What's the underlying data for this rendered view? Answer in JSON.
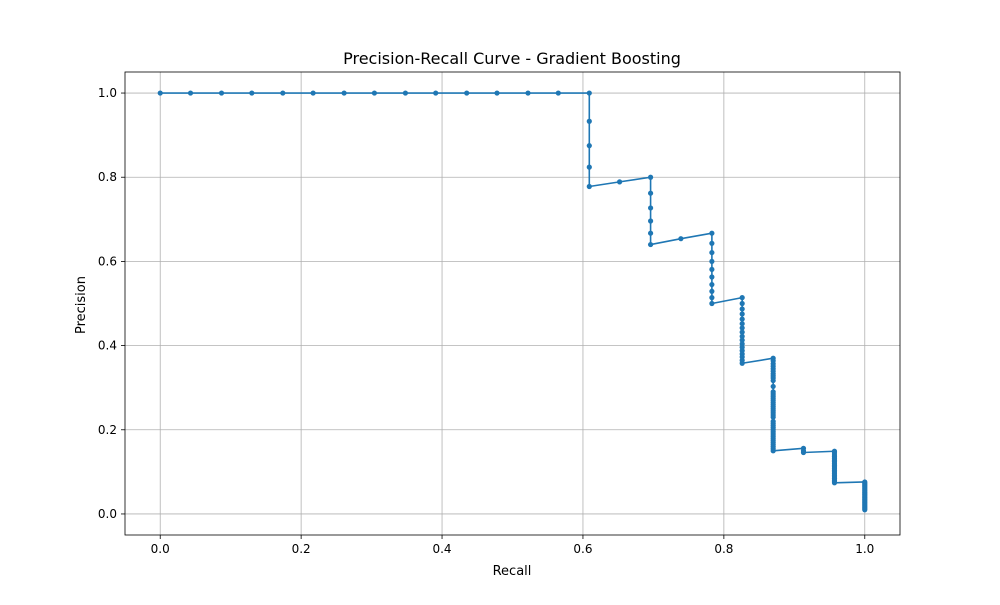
{
  "chart_data": {
    "type": "line",
    "title": "Precision-Recall Curve - Gradient Boosting",
    "xlabel": "Recall",
    "ylabel": "Precision",
    "xlim": [
      -0.05,
      1.05
    ],
    "ylim": [
      -0.05,
      1.05
    ],
    "x_ticks": [
      "0.0",
      "0.2",
      "0.4",
      "0.6",
      "0.8",
      "1.0"
    ],
    "y_ticks": [
      "0.0",
      "0.2",
      "0.4",
      "0.6",
      "0.8",
      "1.0"
    ],
    "grid": true,
    "marker": "dot",
    "line_color": "#1f77b4",
    "series": [
      {
        "points": [
          [
            0.0,
            1.0
          ],
          [
            0.043,
            1.0
          ],
          [
            0.087,
            1.0
          ],
          [
            0.13,
            1.0
          ],
          [
            0.174,
            1.0
          ],
          [
            0.217,
            1.0
          ],
          [
            0.261,
            1.0
          ],
          [
            0.304,
            1.0
          ],
          [
            0.348,
            1.0
          ],
          [
            0.391,
            1.0
          ],
          [
            0.435,
            1.0
          ],
          [
            0.478,
            1.0
          ],
          [
            0.522,
            1.0
          ],
          [
            0.565,
            1.0
          ],
          [
            0.609,
            1.0
          ],
          [
            0.609,
            0.933
          ],
          [
            0.609,
            0.875
          ],
          [
            0.609,
            0.824
          ],
          [
            0.609,
            0.778
          ],
          [
            0.652,
            0.789
          ],
          [
            0.696,
            0.8
          ],
          [
            0.696,
            0.762
          ],
          [
            0.696,
            0.727
          ],
          [
            0.696,
            0.696
          ],
          [
            0.696,
            0.667
          ],
          [
            0.696,
            0.64
          ],
          [
            0.739,
            0.654
          ],
          [
            0.783,
            0.667
          ],
          [
            0.783,
            0.643
          ],
          [
            0.783,
            0.621
          ],
          [
            0.783,
            0.6
          ],
          [
            0.783,
            0.581
          ],
          [
            0.783,
            0.563
          ],
          [
            0.783,
            0.545
          ],
          [
            0.783,
            0.529
          ],
          [
            0.783,
            0.514
          ],
          [
            0.783,
            0.5
          ],
          [
            0.826,
            0.514
          ],
          [
            0.826,
            0.5
          ],
          [
            0.826,
            0.487
          ],
          [
            0.826,
            0.475
          ],
          [
            0.826,
            0.463
          ],
          [
            0.826,
            0.452
          ],
          [
            0.826,
            0.442
          ],
          [
            0.826,
            0.432
          ],
          [
            0.826,
            0.422
          ],
          [
            0.826,
            0.413
          ],
          [
            0.826,
            0.404
          ],
          [
            0.826,
            0.396
          ],
          [
            0.826,
            0.388
          ],
          [
            0.826,
            0.38
          ],
          [
            0.826,
            0.373
          ],
          [
            0.826,
            0.365
          ],
          [
            0.826,
            0.358
          ],
          [
            0.87,
            0.37
          ],
          [
            0.87,
            0.364
          ],
          [
            0.87,
            0.357
          ],
          [
            0.87,
            0.351
          ],
          [
            0.87,
            0.345
          ],
          [
            0.87,
            0.339
          ],
          [
            0.87,
            0.333
          ],
          [
            0.87,
            0.328
          ],
          [
            0.87,
            0.323
          ],
          [
            0.87,
            0.317
          ],
          [
            0.87,
            0.303
          ],
          [
            0.87,
            0.29
          ],
          [
            0.87,
            0.285
          ],
          [
            0.87,
            0.28
          ],
          [
            0.87,
            0.275
          ],
          [
            0.87,
            0.27
          ],
          [
            0.87,
            0.265
          ],
          [
            0.87,
            0.26
          ],
          [
            0.87,
            0.255
          ],
          [
            0.87,
            0.25
          ],
          [
            0.87,
            0.245
          ],
          [
            0.87,
            0.24
          ],
          [
            0.87,
            0.235
          ],
          [
            0.87,
            0.23
          ],
          [
            0.87,
            0.22
          ],
          [
            0.87,
            0.215
          ],
          [
            0.87,
            0.21
          ],
          [
            0.87,
            0.205
          ],
          [
            0.87,
            0.2
          ],
          [
            0.87,
            0.195
          ],
          [
            0.87,
            0.19
          ],
          [
            0.87,
            0.185
          ],
          [
            0.87,
            0.18
          ],
          [
            0.87,
            0.175
          ],
          [
            0.87,
            0.17
          ],
          [
            0.87,
            0.165
          ],
          [
            0.87,
            0.16
          ],
          [
            0.87,
            0.155
          ],
          [
            0.87,
            0.15
          ],
          [
            0.913,
            0.156
          ],
          [
            0.913,
            0.15
          ],
          [
            0.913,
            0.146
          ],
          [
            0.957,
            0.149
          ],
          [
            0.957,
            0.145
          ],
          [
            0.957,
            0.14
          ],
          [
            0.957,
            0.136
          ],
          [
            0.957,
            0.132
          ],
          [
            0.957,
            0.128
          ],
          [
            0.957,
            0.124
          ],
          [
            0.957,
            0.12
          ],
          [
            0.957,
            0.116
          ],
          [
            0.957,
            0.112
          ],
          [
            0.957,
            0.108
          ],
          [
            0.957,
            0.104
          ],
          [
            0.957,
            0.1
          ],
          [
            0.957,
            0.096
          ],
          [
            0.957,
            0.092
          ],
          [
            0.957,
            0.088
          ],
          [
            0.957,
            0.084
          ],
          [
            0.957,
            0.08
          ],
          [
            0.957,
            0.077
          ],
          [
            0.957,
            0.074
          ],
          [
            1.0,
            0.076
          ],
          [
            1.0,
            0.073
          ],
          [
            1.0,
            0.07
          ],
          [
            1.0,
            0.067
          ],
          [
            1.0,
            0.064
          ],
          [
            1.0,
            0.061
          ],
          [
            1.0,
            0.058
          ],
          [
            1.0,
            0.055
          ],
          [
            1.0,
            0.052
          ],
          [
            1.0,
            0.049
          ],
          [
            1.0,
            0.046
          ],
          [
            1.0,
            0.043
          ],
          [
            1.0,
            0.04
          ],
          [
            1.0,
            0.037
          ],
          [
            1.0,
            0.034
          ],
          [
            1.0,
            0.031
          ],
          [
            1.0,
            0.028
          ],
          [
            1.0,
            0.025
          ],
          [
            1.0,
            0.022
          ],
          [
            1.0,
            0.019
          ],
          [
            1.0,
            0.016
          ],
          [
            1.0,
            0.013
          ],
          [
            1.0,
            0.01
          ]
        ]
      }
    ]
  }
}
